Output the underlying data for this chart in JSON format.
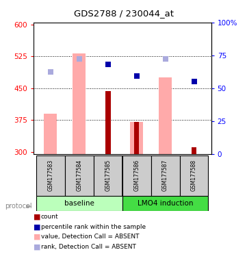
{
  "title": "GDS2788 / 230044_at",
  "samples": [
    "GSM177583",
    "GSM177584",
    "GSM177585",
    "GSM177586",
    "GSM177587",
    "GSM177588"
  ],
  "ylim_left": [
    295,
    605
  ],
  "ylim_right": [
    0,
    100
  ],
  "yticks_left": [
    300,
    375,
    450,
    525,
    600
  ],
  "yticks_right": [
    0,
    25,
    50,
    75,
    100
  ],
  "ytick_labels_left": [
    "300",
    "375",
    "450",
    "525",
    "600"
  ],
  "ytick_labels_right": [
    "0",
    "25",
    "50",
    "75",
    "100%"
  ],
  "pink_bar_values": [
    390,
    532,
    null,
    370,
    476,
    null
  ],
  "dark_red_bar_values": [
    null,
    null,
    443,
    370,
    null,
    310
  ],
  "blue_square_pct": [
    null,
    null,
    68,
    59,
    null,
    55
  ],
  "light_blue_square_values": [
    488,
    519,
    null,
    null,
    519,
    null
  ],
  "pink_bar_color": "#ffaaaa",
  "dark_red_bar_color": "#aa0000",
  "blue_square_color": "#0000aa",
  "light_blue_square_color": "#aaaadd",
  "baseline_color": "#bbffbb",
  "lmo4_color": "#44dd44",
  "gray_box_color": "#cccccc",
  "legend_items": [
    {
      "label": "count",
      "color": "#aa0000"
    },
    {
      "label": "percentile rank within the sample",
      "color": "#0000aa"
    },
    {
      "label": "value, Detection Call = ABSENT",
      "color": "#ffaaaa"
    },
    {
      "label": "rank, Detection Call = ABSENT",
      "color": "#aaaadd"
    }
  ]
}
